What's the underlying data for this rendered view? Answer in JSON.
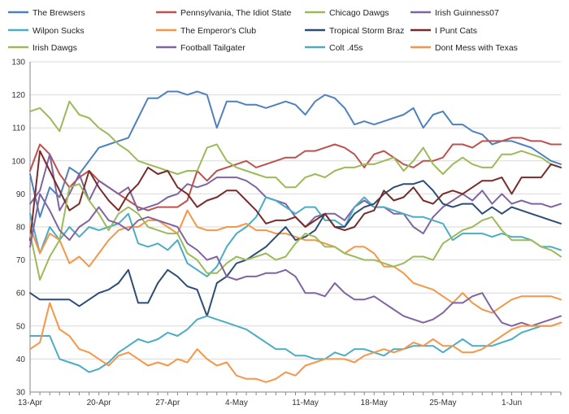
{
  "chart_data": {
    "type": "line",
    "title": "",
    "xlabel": "",
    "ylabel": "",
    "ylim": [
      30,
      130
    ],
    "yticks": [
      30,
      40,
      50,
      60,
      70,
      80,
      90,
      100,
      110,
      120,
      130
    ],
    "x": [
      "13-Apr",
      "14-Apr",
      "15-Apr",
      "16-Apr",
      "17-Apr",
      "18-Apr",
      "19-Apr",
      "20-Apr",
      "21-Apr",
      "22-Apr",
      "23-Apr",
      "24-Apr",
      "25-Apr",
      "26-Apr",
      "27-Apr",
      "28-Apr",
      "29-Apr",
      "30-Apr",
      "1-May",
      "2-May",
      "3-May",
      "4-May",
      "5-May",
      "6-May",
      "7-May",
      "8-May",
      "9-May",
      "10-May",
      "11-May",
      "12-May",
      "13-May",
      "14-May",
      "15-May",
      "16-May",
      "17-May",
      "18-May",
      "19-May",
      "20-May",
      "21-May",
      "22-May",
      "23-May",
      "24-May",
      "25-May",
      "26-May",
      "27-May",
      "28-May",
      "29-May",
      "30-May",
      "31-May",
      "1-Jun",
      "2-Jun",
      "3-Jun",
      "4-Jun",
      "5-Jun",
      "6-Jun"
    ],
    "x_tick_labels": [
      "13-Apr",
      "20-Apr",
      "27-Apr",
      "4-May",
      "11-May",
      "18-May",
      "25-May",
      "1-Jun"
    ],
    "grid": "horizontal",
    "legend_position": "top",
    "series": [
      {
        "name": "The Brewsers",
        "color": "#4f81bd",
        "values": [
          96,
          83,
          92,
          89,
          98,
          96,
          100,
          104,
          105,
          106,
          107,
          113,
          119,
          119,
          121,
          121,
          120,
          121,
          120,
          110,
          118,
          118,
          117,
          117,
          116,
          117,
          118,
          117,
          114,
          118,
          120,
          119,
          116,
          111,
          112,
          111,
          112,
          113,
          114,
          116,
          110,
          114,
          115,
          111,
          111,
          109,
          108,
          105,
          106,
          106,
          105,
          104,
          102,
          100,
          99
        ]
      },
      {
        "name": "Pennsylvania, The Idiot State",
        "color": "#c0504d",
        "values": [
          97,
          105,
          102,
          96,
          92,
          95,
          97,
          94,
          92,
          90,
          88,
          86,
          85,
          86,
          86,
          86,
          88,
          97,
          94,
          97,
          98,
          99,
          100,
          98,
          99,
          100,
          101,
          101,
          103,
          103,
          104,
          105,
          104,
          102,
          98,
          102,
          103,
          101,
          99,
          98,
          100,
          100,
          101,
          105,
          105,
          104,
          106,
          106,
          106,
          107,
          107,
          106,
          106,
          105,
          105
        ]
      },
      {
        "name": "Chicago Dawgs",
        "color": "#9bbb59",
        "values": [
          115,
          116,
          113,
          109,
          118,
          114,
          113,
          110,
          108,
          105,
          103,
          100,
          99,
          98,
          97,
          96,
          97,
          97,
          104,
          105,
          100,
          98,
          97,
          96,
          95,
          95,
          92,
          92,
          95,
          96,
          95,
          97,
          98,
          98,
          99,
          99,
          100,
          101,
          97,
          100,
          104,
          99,
          96,
          99,
          101,
          99,
          98,
          98,
          102,
          102,
          103,
          102,
          101,
          99,
          98
        ]
      },
      {
        "name": "Irish Guinness07",
        "color": "#8064a2",
        "values": [
          87,
          91,
          102,
          85,
          90,
          96,
          88,
          94,
          92,
          90,
          92,
          85,
          86,
          87,
          89,
          90,
          93,
          92,
          93,
          95,
          95,
          95,
          94,
          92,
          89,
          88,
          87,
          83,
          80,
          83,
          84,
          84,
          82,
          86,
          88,
          86,
          86,
          84,
          84,
          80,
          78,
          83,
          86,
          88,
          90,
          88,
          91,
          87,
          90,
          87,
          88,
          87,
          87,
          86,
          87
        ]
      },
      {
        "name": "Wilpon Sucks",
        "color": "#4bacc6",
        "values": [
          84,
          72,
          80,
          76,
          80,
          77,
          80,
          79,
          80,
          81,
          84,
          75,
          74,
          75,
          73,
          76,
          69,
          67,
          65,
          68,
          74,
          78,
          80,
          83,
          89,
          88,
          86,
          84,
          86,
          86,
          82,
          82,
          80,
          86,
          89,
          86,
          86,
          85,
          84,
          83,
          83,
          82,
          81,
          76,
          78,
          78,
          78,
          77,
          78,
          77,
          77,
          76,
          74,
          74,
          73
        ]
      },
      {
        "name": "The Emperor's Club",
        "color": "#f79646",
        "values": [
          80,
          72,
          78,
          76,
          69,
          71,
          68,
          72,
          76,
          79,
          80,
          80,
          82,
          82,
          80,
          78,
          85,
          80,
          79,
          79,
          80,
          80,
          81,
          79,
          79,
          78,
          78,
          77,
          76,
          76,
          75,
          74,
          72,
          74,
          74,
          72,
          68,
          68,
          66,
          63,
          62,
          61,
          59,
          57,
          60,
          57,
          55,
          54,
          56,
          58,
          59,
          59,
          59,
          59,
          58
        ]
      },
      {
        "name": "Tropical Storm Braz",
        "color": "#2c4d75",
        "values": [
          60,
          58,
          58,
          58,
          58,
          56,
          58,
          60,
          61,
          63,
          67,
          57,
          57,
          63,
          67,
          65,
          62,
          61,
          53,
          63,
          65,
          69,
          70,
          72,
          74,
          77,
          80,
          76,
          77,
          79,
          84,
          80,
          80,
          84,
          86,
          87,
          90,
          92,
          93,
          93,
          94,
          91,
          87,
          86,
          87,
          87,
          84,
          86,
          84,
          86,
          85,
          84,
          83,
          82,
          81
        ]
      },
      {
        "name": "I Punt Cats",
        "color": "#772c2a",
        "values": [
          76,
          103,
          97,
          91,
          85,
          87,
          97,
          92,
          88,
          85,
          90,
          93,
          98,
          96,
          97,
          92,
          90,
          86,
          88,
          89,
          91,
          91,
          88,
          85,
          81,
          82,
          82,
          83,
          80,
          82,
          84,
          80,
          79,
          80,
          84,
          85,
          91,
          88,
          89,
          92,
          88,
          87,
          90,
          91,
          90,
          92,
          94,
          94,
          95,
          90,
          95,
          95,
          95,
          99,
          98
        ]
      },
      {
        "name": "Irish Dawgs",
        "color": "#9bbb59",
        "values": [
          78,
          64,
          71,
          76,
          92,
          93,
          88,
          84,
          79,
          84,
          86,
          84,
          80,
          79,
          78,
          78,
          72,
          70,
          66,
          66,
          69,
          71,
          70,
          71,
          72,
          70,
          71,
          75,
          78,
          77,
          74,
          74,
          72,
          71,
          70,
          70,
          69,
          68,
          69,
          71,
          71,
          70,
          75,
          77,
          79,
          80,
          82,
          83,
          79,
          76,
          76,
          76,
          74,
          73,
          71
        ]
      },
      {
        "name": "Football Tailgater",
        "color": "#8064a2",
        "values": [
          74,
          90,
          85,
          79,
          76,
          80,
          82,
          86,
          82,
          81,
          79,
          82,
          83,
          82,
          81,
          80,
          75,
          73,
          70,
          71,
          65,
          64,
          65,
          65,
          66,
          66,
          67,
          65,
          60,
          60,
          59,
          63,
          60,
          58,
          58,
          59,
          57,
          55,
          53,
          52,
          51,
          52,
          54,
          57,
          57,
          59,
          60,
          55,
          51,
          50,
          51,
          50,
          51,
          52,
          53
        ]
      },
      {
        "name": "Colt .45s",
        "color": "#4bacc6",
        "values": [
          47,
          47,
          47,
          40,
          39,
          38,
          36,
          37,
          39,
          42,
          44,
          46,
          45,
          46,
          48,
          47,
          49,
          52,
          53,
          52,
          51,
          50,
          49,
          47,
          45,
          43,
          43,
          41,
          41,
          40,
          40,
          42,
          41,
          43,
          43,
          42,
          41,
          43,
          43,
          44,
          44,
          44,
          42,
          44,
          46,
          44,
          44,
          44,
          45,
          46,
          48,
          49,
          50,
          50,
          51
        ]
      },
      {
        "name": "Dont Mess with Texas",
        "color": "#f79646",
        "values": [
          43,
          45,
          57,
          49,
          47,
          43,
          42,
          40,
          38,
          41,
          42,
          40,
          38,
          39,
          38,
          40,
          39,
          43,
          40,
          38,
          39,
          35,
          34,
          34,
          33,
          34,
          36,
          35,
          38,
          39,
          40,
          40,
          40,
          39,
          41,
          42,
          43,
          42,
          43,
          45,
          44,
          46,
          44,
          44,
          42,
          42,
          43,
          45,
          47,
          49,
          50,
          50,
          50,
          50,
          51
        ]
      }
    ]
  }
}
